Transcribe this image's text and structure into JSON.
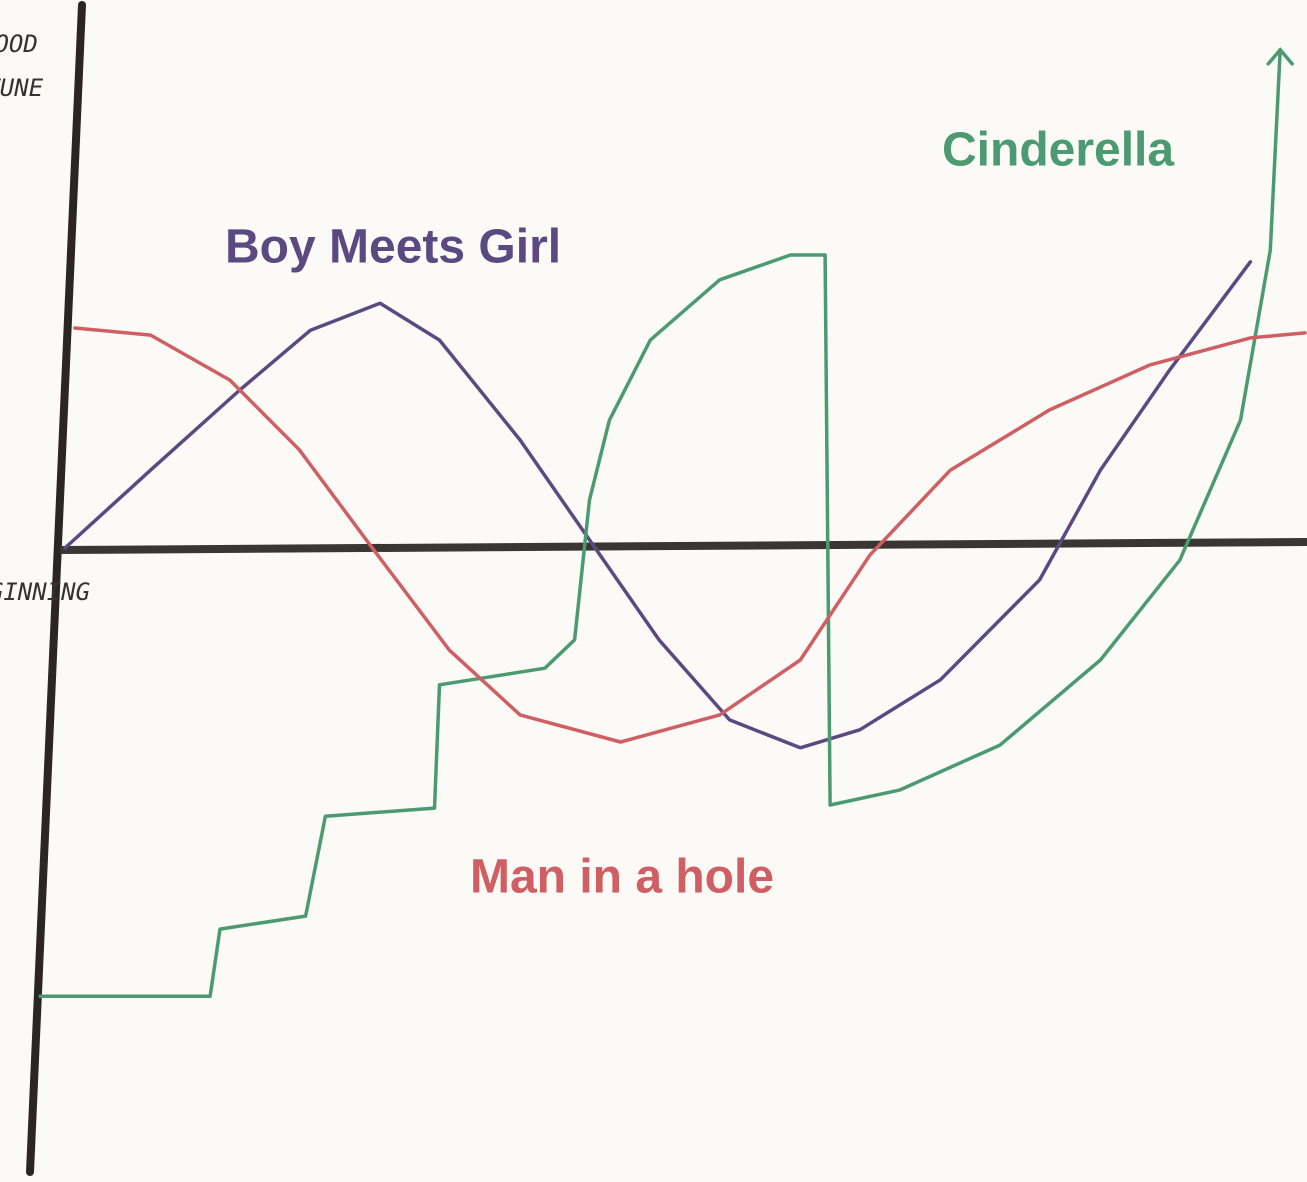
{
  "chart_data": {
    "type": "line",
    "y_label_lines": [
      "GOOD",
      "FORTUNE"
    ],
    "xlabel": "BEGINNING",
    "xlim": [
      -5,
      100
    ],
    "ylim": [
      -120,
      120
    ],
    "series": [
      {
        "name": "Boy Meets Girl",
        "color": "#5b4a82",
        "x": [
          0,
          6.9,
          14.1,
          19.8,
          25.4,
          30.2,
          36.7,
          42.3,
          47.9,
          53.6,
          59.3,
          64.1,
          70.6,
          78.6,
          83.5,
          89.1,
          95.6
        ],
        "values": [
          0,
          17.3,
          35.1,
          48.4,
          54.4,
          46.2,
          24,
          1.8,
          -20.4,
          -38.2,
          -44.4,
          -40.4,
          -29.3,
          -7.1,
          17.3,
          39.6,
          63.6
        ]
      },
      {
        "name": "Cinderella",
        "color": "#4b9a72",
        "x": [
          -2,
          11.7,
          12.5,
          19.4,
          21.0,
          29.8,
          30.2,
          38.7,
          41.1,
          42.3,
          43.9,
          47.2,
          52.8,
          58.5,
          61.3,
          61.7,
          67.3,
          75.4,
          83.5,
          89.9,
          94.8,
          97.2,
          98.0
        ],
        "values": [
          -99.6,
          -99.6,
          -84.7,
          -81.8,
          -59.6,
          -57.8,
          -30.4,
          -26.7,
          -20.4,
          10.7,
          28.4,
          46.2,
          59.6,
          65.1,
          65.1,
          -57.1,
          -53.8,
          -43.8,
          -24.9,
          -2.7,
          28.4,
          66.2,
          110.7
        ]
      },
      {
        "name": "Man in a hole",
        "color": "#cf5f63",
        "x": [
          0.8,
          6.9,
          13.3,
          18.9,
          24.6,
          31.0,
          36.7,
          44.8,
          52.8,
          59.3,
          64.9,
          71.4,
          79.4,
          87.5,
          95.6,
          100
        ],
        "values": [
          48.9,
          47.3,
          37.3,
          21.8,
          0.7,
          -22.7,
          -37.1,
          -43.1,
          -37.1,
          -24.9,
          -1.6,
          17.3,
          30.7,
          40.7,
          46.7,
          47.8
        ]
      }
    ]
  }
}
